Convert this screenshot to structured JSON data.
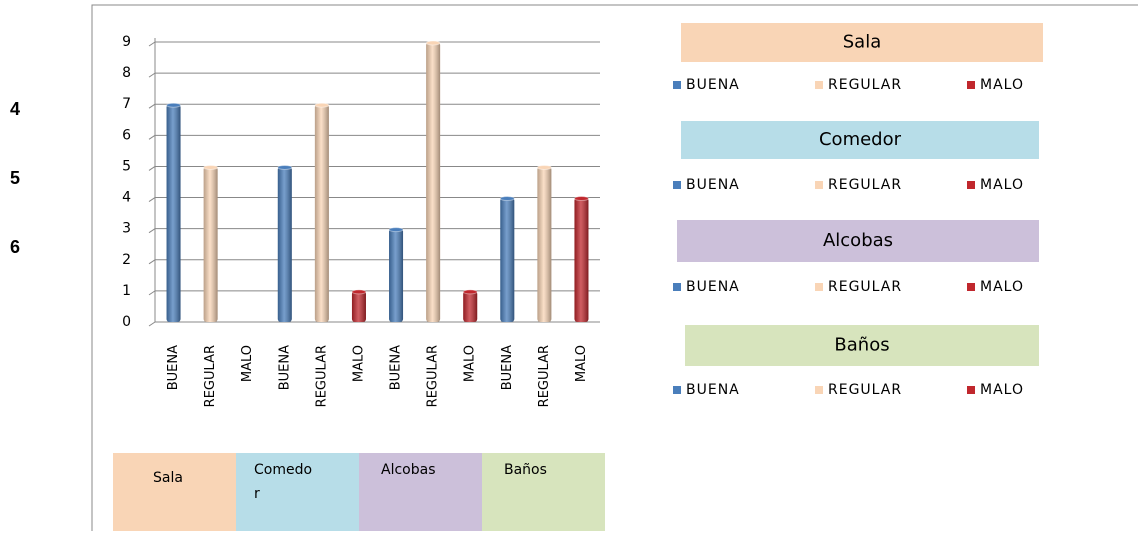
{
  "rows": [
    4,
    5,
    6
  ],
  "chart_data": {
    "type": "bar",
    "categories": [
      "BUENA",
      "REGULAR",
      "MALO",
      "BUENA",
      "REGULAR",
      "MALO",
      "BUENA",
      "REGULAR",
      "MALO",
      "BUENA",
      "REGULAR",
      "MALO"
    ],
    "values": [
      7,
      5,
      0,
      5,
      7,
      1,
      3,
      9,
      1,
      4,
      5,
      4
    ],
    "series": [
      {
        "name": "BUENA",
        "color": "#4a7ebb"
      },
      {
        "name": "REGULAR",
        "color": "#f9d5b6"
      },
      {
        "name": "MALO",
        "color": "#c0272d"
      }
    ],
    "groups": [
      {
        "name": "Sala",
        "color": "#f9d5b6"
      },
      {
        "name": "Comedo r",
        "color": "#b7dde8"
      },
      {
        "name": "Alcobas",
        "color": "#ccc0da"
      },
      {
        "name": "Baños",
        "color": "#d7e4bd"
      }
    ],
    "legend_titles": [
      "Sala",
      "Comedor",
      "Alcobas",
      "Baños"
    ],
    "ylim": [
      0,
      9
    ],
    "yticks": [
      0,
      1,
      2,
      3,
      4,
      5,
      6,
      7,
      8,
      9
    ],
    "grid": true
  }
}
